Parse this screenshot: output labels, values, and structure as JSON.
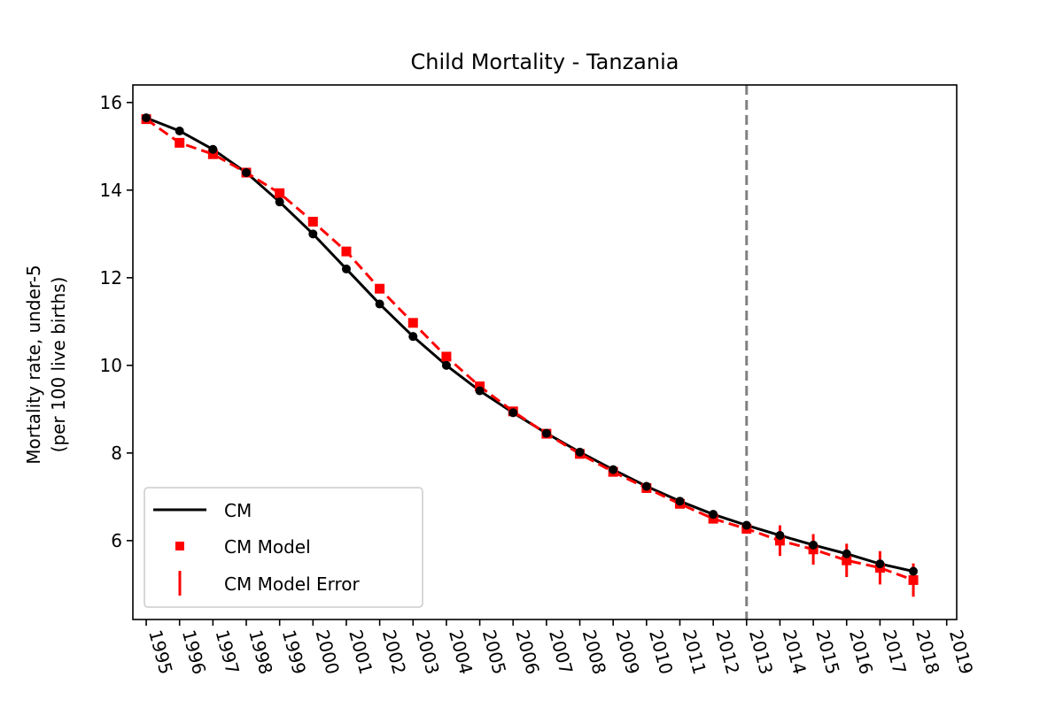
{
  "chart_data": {
    "type": "line",
    "title": "Child Mortality - Tanzania",
    "xlabel": "",
    "ylabel_lines": [
      "Mortality rate, under-5",
      "(per 100 live births)"
    ],
    "x": [
      1995,
      1996,
      1997,
      1998,
      1999,
      2000,
      2001,
      2002,
      2003,
      2004,
      2005,
      2006,
      2007,
      2008,
      2009,
      2010,
      2011,
      2012,
      2013,
      2014,
      2015,
      2016,
      2017,
      2018
    ],
    "xticks": [
      1995,
      1996,
      1997,
      1998,
      1999,
      2000,
      2001,
      2002,
      2003,
      2004,
      2005,
      2006,
      2007,
      2008,
      2009,
      2010,
      2011,
      2012,
      2013,
      2014,
      2015,
      2016,
      2017,
      2018,
      2019
    ],
    "xlim": [
      1994.6,
      2019.3
    ],
    "ylim": [
      4.2,
      16.4
    ],
    "yticks": [
      6,
      8,
      10,
      12,
      14,
      16
    ],
    "series": [
      {
        "name": "CM",
        "kind": "line-markers",
        "color": "#000000",
        "values": [
          15.65,
          15.35,
          14.93,
          14.4,
          13.73,
          13.0,
          12.2,
          11.4,
          10.66,
          10.0,
          9.42,
          8.92,
          8.45,
          8.02,
          7.62,
          7.24,
          6.9,
          6.6,
          6.35,
          6.12,
          5.9,
          5.7,
          5.47,
          5.3
        ]
      },
      {
        "name": "CM Model",
        "kind": "dashed-squares",
        "color": "#ff0000",
        "values": [
          15.62,
          15.08,
          14.82,
          14.4,
          13.93,
          13.28,
          12.6,
          11.75,
          10.97,
          10.2,
          9.52,
          8.95,
          8.44,
          7.98,
          7.57,
          7.2,
          6.84,
          6.5,
          6.27,
          6.0,
          5.8,
          5.55,
          5.38,
          5.1
        ]
      },
      {
        "name": "CM Model Error",
        "kind": "errorbars",
        "color": "#ff0000",
        "x": [
          2014,
          2015,
          2016,
          2017,
          2018
        ],
        "values": [
          6.0,
          5.8,
          5.55,
          5.38,
          5.1
        ],
        "errors": [
          0.35,
          0.35,
          0.38,
          0.38,
          0.38
        ]
      }
    ],
    "reference_line": {
      "x": 2013,
      "color": "#808080",
      "style": "dashed"
    },
    "legend": {
      "position": "lower-left",
      "entries": [
        "CM",
        "CM Model",
        "CM Model Error"
      ]
    }
  }
}
